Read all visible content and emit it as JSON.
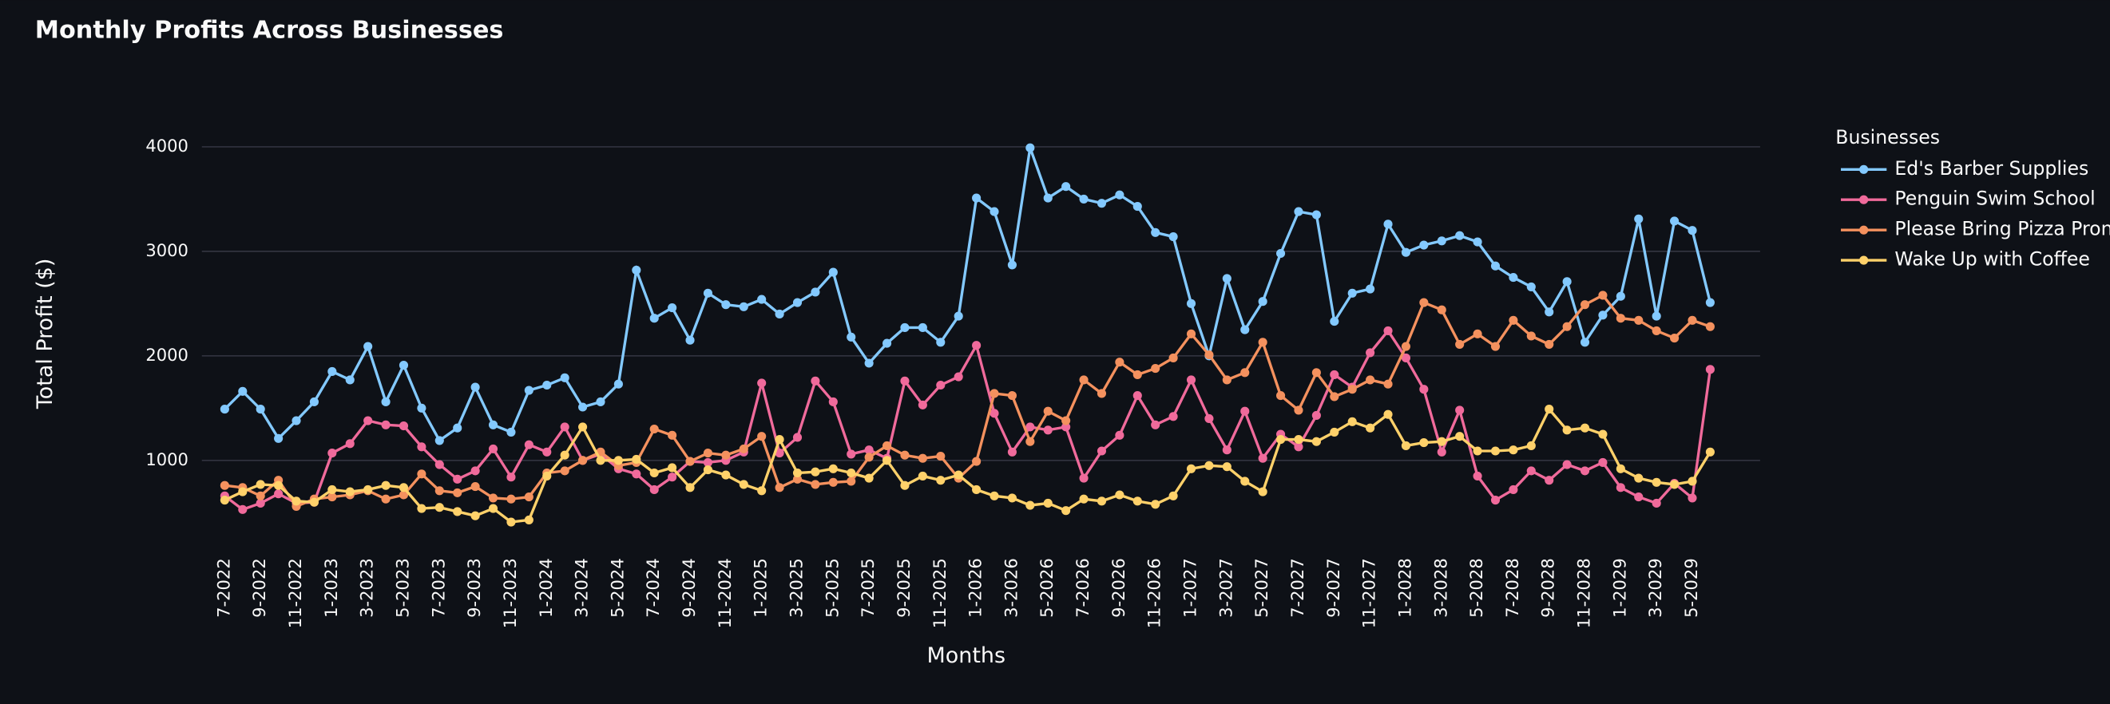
{
  "chart_data": {
    "type": "line",
    "title": "Monthly Profits Across Businesses",
    "x_label": "Months",
    "y_label": "Total Profit ($)",
    "legend_title": "Businesses",
    "categories": [
      "7-2022",
      null,
      "9-2022",
      null,
      "11-2022",
      null,
      "1-2023",
      null,
      "3-2023",
      null,
      "5-2023",
      null,
      "7-2023",
      null,
      "9-2023",
      null,
      "11-2023",
      null,
      "1-2024",
      null,
      "3-2024",
      null,
      "5-2024",
      null,
      "7-2024",
      null,
      "9-2024",
      null,
      "11-2024",
      null,
      "1-2025",
      null,
      "3-2025",
      null,
      "5-2025",
      null,
      "7-2025",
      null,
      "9-2025",
      null,
      "11-2025",
      null,
      "1-2026",
      null,
      "3-2026",
      null,
      "5-2026",
      null,
      "7-2026",
      null,
      "9-2026",
      null,
      "11-2026",
      null,
      "1-2027",
      null,
      "3-2027",
      null,
      "5-2027",
      null,
      "7-2027",
      null,
      "9-2027",
      null,
      "11-2027",
      null,
      "1-2028",
      null,
      "3-2028",
      null,
      "5-2028",
      null,
      "7-2028",
      null,
      "9-2028",
      null,
      "11-2028",
      null,
      "1-2029",
      null,
      "3-2029",
      null,
      "5-2029",
      null
    ],
    "series": [
      {
        "name": "Ed's Barber Supplies",
        "color": "#83c9ff",
        "values": [
          1490,
          1660,
          1490,
          1210,
          1380,
          1560,
          1850,
          1770,
          2090,
          1560,
          1910,
          1500,
          1190,
          1310,
          1700,
          1340,
          1270,
          1670,
          1720,
          1790,
          1510,
          1560,
          1730,
          2820,
          2360,
          2460,
          2150,
          2600,
          2490,
          2470,
          2540,
          2400,
          2510,
          2610,
          2800,
          2180,
          1930,
          2120,
          2270,
          2270,
          2130,
          2380,
          3510,
          3380,
          2870,
          3990,
          3510,
          3620,
          3500,
          3460,
          3540,
          3430,
          3180,
          3140,
          2500,
          2000,
          2740,
          2250,
          2520,
          2980,
          3380,
          3350,
          2330,
          2600,
          2640,
          3260,
          2990,
          3060,
          3100,
          3150,
          3090,
          2860,
          2750,
          2660,
          2420,
          2710,
          2130,
          2390,
          2570,
          3310,
          2380,
          3290,
          3200,
          2510
        ]
      },
      {
        "name": "Penguin Swim School",
        "color": "#f06a9b",
        "values": [
          660,
          530,
          590,
          680,
          590,
          600,
          1070,
          1160,
          1380,
          1340,
          1330,
          1130,
          960,
          820,
          900,
          1110,
          840,
          1150,
          1080,
          1320,
          1000,
          1060,
          920,
          870,
          720,
          840,
          990,
          980,
          1000,
          1080,
          1740,
          1070,
          1220,
          1760,
          1560,
          1060,
          1100,
          1020,
          1760,
          1530,
          1720,
          1800,
          2100,
          1450,
          1080,
          1320,
          1290,
          1320,
          830,
          1090,
          1240,
          1620,
          1340,
          1420,
          1770,
          1400,
          1100,
          1470,
          1020,
          1250,
          1130,
          1430,
          1820,
          1700,
          2030,
          2240,
          1980,
          1680,
          1080,
          1480,
          850,
          620,
          720,
          900,
          810,
          960,
          900,
          980,
          740,
          650,
          590,
          780,
          640,
          1870
        ]
      },
      {
        "name": "Please Bring Pizza Pronto",
        "color": "#f4915e",
        "values": [
          760,
          740,
          660,
          810,
          560,
          630,
          650,
          670,
          710,
          630,
          670,
          870,
          710,
          690,
          750,
          640,
          630,
          650,
          880,
          900,
          1000,
          1080,
          950,
          980,
          1300,
          1240,
          990,
          1070,
          1050,
          1110,
          1230,
          740,
          820,
          770,
          790,
          800,
          1030,
          1140,
          1050,
          1020,
          1040,
          830,
          990,
          1640,
          1620,
          1180,
          1470,
          1380,
          1770,
          1640,
          1940,
          1820,
          1880,
          1980,
          2210,
          2010,
          1770,
          1840,
          2130,
          1620,
          1480,
          1840,
          1610,
          1680,
          1770,
          1730,
          2090,
          2510,
          2440,
          2110,
          2210,
          2090,
          2340,
          2190,
          2110,
          2280,
          2490,
          2580,
          2360,
          2340,
          2240,
          2170,
          2340,
          2280
        ]
      },
      {
        "name": "Wake Up with Coffee",
        "color": "#ffd16a",
        "values": [
          620,
          700,
          770,
          760,
          610,
          600,
          720,
          700,
          720,
          760,
          740,
          540,
          550,
          510,
          470,
          540,
          410,
          430,
          850,
          1050,
          1320,
          1000,
          1000,
          1010,
          880,
          930,
          740,
          910,
          860,
          770,
          710,
          1200,
          880,
          890,
          920,
          880,
          830,
          1000,
          760,
          850,
          810,
          860,
          720,
          660,
          640,
          570,
          590,
          520,
          630,
          610,
          670,
          610,
          580,
          660,
          920,
          950,
          940,
          800,
          700,
          1200,
          1200,
          1180,
          1270,
          1370,
          1310,
          1440,
          1140,
          1170,
          1180,
          1230,
          1090,
          1090,
          1100,
          1140,
          1490,
          1290,
          1310,
          1250,
          920,
          830,
          790,
          770,
          800,
          1080
        ]
      }
    ],
    "ylim": [
      250,
      4150
    ],
    "yticks": [
      1000,
      2000,
      3000,
      4000
    ],
    "grid": true,
    "legend": "right"
  }
}
